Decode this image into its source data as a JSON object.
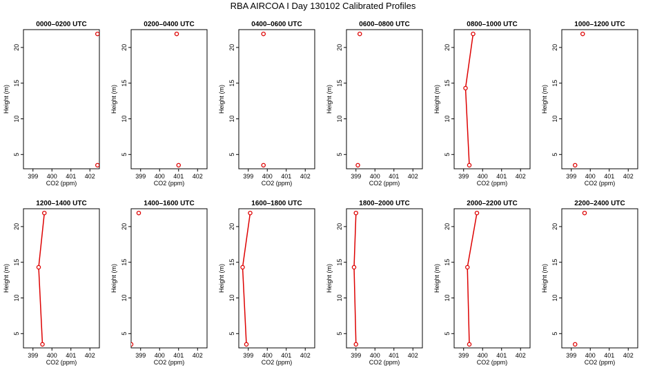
{
  "title": "RBA AIRCOA I  Day 130102  Calibrated Profiles",
  "chart_data": {
    "type": "line",
    "title": "RBA AIRCOA I  Day 130102  Calibrated Profiles",
    "xlabel": "CO2 (ppm)",
    "ylabel": "Height (m)",
    "xlim": [
      398.5,
      402.5
    ],
    "ylim": [
      3,
      22.5
    ],
    "x_ticks": [
      399,
      400,
      401,
      402
    ],
    "y_ticks": [
      5,
      10,
      15,
      20
    ],
    "marker_color": "#dd0000",
    "line_color": "#dd0000",
    "panels": [
      {
        "title": "0000–0200 UTC",
        "points": [
          {
            "height": 3.5,
            "co2": 402.4
          },
          {
            "height": 21.9,
            "co2": 402.4
          }
        ],
        "connected": false
      },
      {
        "title": "0200–0400 UTC",
        "points": [
          {
            "height": 3.5,
            "co2": 401.0
          },
          {
            "height": 21.9,
            "co2": 400.9
          }
        ],
        "connected": false
      },
      {
        "title": "0400–0600 UTC",
        "points": [
          {
            "height": 3.5,
            "co2": 399.8
          },
          {
            "height": 21.9,
            "co2": 399.8
          }
        ],
        "connected": false
      },
      {
        "title": "0600–0800 UTC",
        "points": [
          {
            "height": 3.5,
            "co2": 399.1
          },
          {
            "height": 21.9,
            "co2": 399.2
          }
        ],
        "connected": false
      },
      {
        "title": "0800–1000 UTC",
        "points": [
          {
            "height": 3.5,
            "co2": 399.3
          },
          {
            "height": 14.3,
            "co2": 399.1
          },
          {
            "height": 21.9,
            "co2": 399.5
          }
        ],
        "connected": true
      },
      {
        "title": "1000–1200 UTC",
        "points": [
          {
            "height": 3.5,
            "co2": 399.2
          },
          {
            "height": 21.9,
            "co2": 399.6
          }
        ],
        "connected": false
      },
      {
        "title": "1200–1400 UTC",
        "points": [
          {
            "height": 3.5,
            "co2": 399.5
          },
          {
            "height": 14.3,
            "co2": 399.3
          },
          {
            "height": 21.9,
            "co2": 399.6
          }
        ],
        "connected": true
      },
      {
        "title": "1400–1600 UTC",
        "points": [
          {
            "height": 3.5,
            "co2": 398.5
          },
          {
            "height": 21.9,
            "co2": 398.9
          }
        ],
        "connected": false
      },
      {
        "title": "1600–1800 UTC",
        "points": [
          {
            "height": 3.5,
            "co2": 398.9
          },
          {
            "height": 14.3,
            "co2": 398.7
          },
          {
            "height": 21.9,
            "co2": 399.1
          }
        ],
        "connected": true
      },
      {
        "title": "1800–2000 UTC",
        "points": [
          {
            "height": 3.5,
            "co2": 399.0
          },
          {
            "height": 14.3,
            "co2": 398.9
          },
          {
            "height": 21.9,
            "co2": 399.0
          }
        ],
        "connected": true
      },
      {
        "title": "2000–2200 UTC",
        "points": [
          {
            "height": 3.5,
            "co2": 399.3
          },
          {
            "height": 14.3,
            "co2": 399.2
          },
          {
            "height": 21.9,
            "co2": 399.7
          }
        ],
        "connected": true
      },
      {
        "title": "2200–2400 UTC",
        "points": [
          {
            "height": 3.5,
            "co2": 399.2
          },
          {
            "height": 21.9,
            "co2": 399.7
          }
        ],
        "connected": false
      }
    ]
  }
}
